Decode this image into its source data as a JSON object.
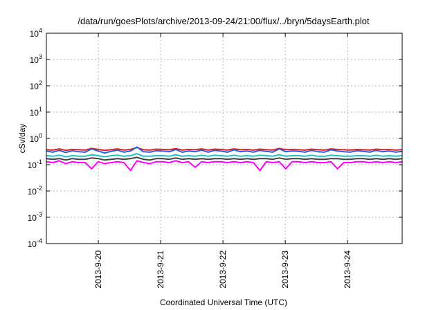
{
  "chart_data": {
    "type": "line",
    "title": "/data/run/goesPlots/archive/2013-09-24/21:00/flux/../bryn/5daysEarth.plot",
    "xlabel": "Coordinated Universal Time (UTC)",
    "ylabel": "cSv/day",
    "yscale": "log",
    "ylim": [
      0.0001,
      10000
    ],
    "y_ticks": [
      {
        "base": "10",
        "exp": "-4",
        "value": 0.0001
      },
      {
        "base": "10",
        "exp": "-3",
        "value": 0.001
      },
      {
        "base": "10",
        "exp": "-2",
        "value": 0.01
      },
      {
        "base": "10",
        "exp": "-1",
        "value": 0.1
      },
      {
        "base": "10",
        "exp": "0",
        "value": 1
      },
      {
        "base": "10",
        "exp": "1",
        "value": 10
      },
      {
        "base": "10",
        "exp": "2",
        "value": 100
      },
      {
        "base": "10",
        "exp": "3",
        "value": 1000
      },
      {
        "base": "10",
        "exp": "4",
        "value": 10000
      }
    ],
    "xlim": [
      "2013-09-19 04:00",
      "2013-09-24 21:00"
    ],
    "x_ticks": [
      "2013-9-20",
      "2013-9-21",
      "2013-9-22",
      "2013-9-23",
      "2013-9-24"
    ],
    "grid": true,
    "legend": "none",
    "series": [
      {
        "color": "#e02020",
        "values": [
          0.37,
          0.36,
          0.4,
          0.35,
          0.38,
          0.37,
          0.36,
          0.42,
          0.38,
          0.35,
          0.37,
          0.4,
          0.36,
          0.38,
          0.45,
          0.37,
          0.36,
          0.39,
          0.38,
          0.37,
          0.41,
          0.36,
          0.38,
          0.37,
          0.4,
          0.36,
          0.39,
          0.38,
          0.36,
          0.4,
          0.37,
          0.38,
          0.36,
          0.39,
          0.37,
          0.36,
          0.42,
          0.37,
          0.38,
          0.37,
          0.36,
          0.39,
          0.37,
          0.36,
          0.4,
          0.38,
          0.37,
          0.36,
          0.38,
          0.37,
          0.36,
          0.39,
          0.37,
          0.38,
          0.36,
          0.37
        ]
      },
      {
        "color": "#2060e0",
        "values": [
          0.33,
          0.3,
          0.35,
          0.29,
          0.34,
          0.31,
          0.3,
          0.4,
          0.33,
          0.28,
          0.32,
          0.36,
          0.3,
          0.33,
          0.47,
          0.31,
          0.3,
          0.34,
          0.33,
          0.31,
          0.38,
          0.3,
          0.33,
          0.31,
          0.36,
          0.3,
          0.35,
          0.33,
          0.3,
          0.37,
          0.31,
          0.33,
          0.3,
          0.35,
          0.32,
          0.3,
          0.4,
          0.31,
          0.33,
          0.32,
          0.3,
          0.35,
          0.31,
          0.3,
          0.37,
          0.33,
          0.31,
          0.3,
          0.34,
          0.32,
          0.3,
          0.35,
          0.31,
          0.33,
          0.3,
          0.32
        ]
      },
      {
        "color": "#20c0c0",
        "values": [
          0.22,
          0.21,
          0.23,
          0.2,
          0.22,
          0.21,
          0.21,
          0.24,
          0.22,
          0.2,
          0.22,
          0.23,
          0.21,
          0.22,
          0.26,
          0.21,
          0.21,
          0.22,
          0.22,
          0.21,
          0.24,
          0.21,
          0.22,
          0.21,
          0.23,
          0.21,
          0.23,
          0.22,
          0.21,
          0.23,
          0.21,
          0.22,
          0.21,
          0.23,
          0.22,
          0.21,
          0.24,
          0.21,
          0.22,
          0.22,
          0.21,
          0.23,
          0.21,
          0.21,
          0.23,
          0.22,
          0.21,
          0.21,
          0.22,
          0.22,
          0.21,
          0.23,
          0.21,
          0.22,
          0.21,
          0.22
        ]
      },
      {
        "color": "#404040",
        "values": [
          0.17,
          0.16,
          0.17,
          0.15,
          0.17,
          0.16,
          0.16,
          0.18,
          0.17,
          0.15,
          0.16,
          0.17,
          0.16,
          0.17,
          0.19,
          0.16,
          0.15,
          0.17,
          0.17,
          0.16,
          0.18,
          0.16,
          0.17,
          0.16,
          0.17,
          0.16,
          0.17,
          0.17,
          0.16,
          0.17,
          0.16,
          0.17,
          0.16,
          0.17,
          0.17,
          0.16,
          0.18,
          0.16,
          0.17,
          0.17,
          0.16,
          0.17,
          0.16,
          0.16,
          0.17,
          0.17,
          0.16,
          0.16,
          0.17,
          0.17,
          0.16,
          0.17,
          0.16,
          0.17,
          0.16,
          0.17
        ]
      },
      {
        "color": "#ff00ff",
        "values": [
          0.13,
          0.12,
          0.14,
          0.11,
          0.13,
          0.12,
          0.12,
          0.07,
          0.13,
          0.11,
          0.12,
          0.13,
          0.12,
          0.06,
          0.14,
          0.12,
          0.11,
          0.13,
          0.13,
          0.12,
          0.14,
          0.12,
          0.13,
          0.08,
          0.13,
          0.12,
          0.13,
          0.13,
          0.12,
          0.13,
          0.12,
          0.13,
          0.12,
          0.06,
          0.13,
          0.12,
          0.13,
          0.07,
          0.13,
          0.13,
          0.12,
          0.13,
          0.12,
          0.12,
          0.13,
          0.07,
          0.12,
          0.12,
          0.13,
          0.13,
          0.12,
          0.13,
          0.12,
          0.13,
          0.12,
          0.13
        ]
      }
    ]
  }
}
